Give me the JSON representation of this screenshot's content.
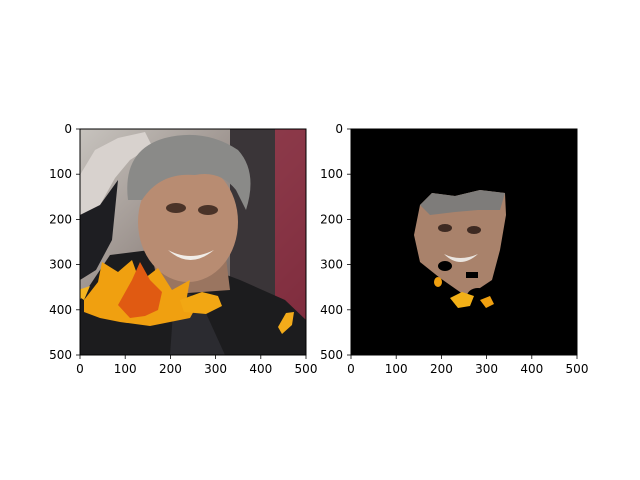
{
  "chart_data": [
    {
      "type": "image",
      "title": "",
      "xlabel": "",
      "ylabel": "",
      "xlim": [
        0,
        500
      ],
      "ylim": [
        500,
        0
      ],
      "xticks": [
        "0",
        "100",
        "200",
        "300",
        "400",
        "500"
      ],
      "yticks": [
        "0",
        "100",
        "200",
        "300",
        "400",
        "500"
      ],
      "content": "photo of a grey-haired man in a dark suit with autumn-leaf overlays"
    },
    {
      "type": "image",
      "title": "",
      "xlabel": "",
      "ylabel": "",
      "xlim": [
        0,
        500
      ],
      "ylim": [
        500,
        0
      ],
      "xticks": [
        "0",
        "100",
        "200",
        "300",
        "400",
        "500"
      ],
      "yticks": [
        "0",
        "100",
        "200",
        "300",
        "400",
        "500"
      ],
      "content": "face-segmentation mask on black background"
    }
  ],
  "colors": {
    "background": "#ffffff",
    "axis": "#000000",
    "mask_bg": "#000000",
    "leaf_orange": "#f0a010",
    "leaf_red": "#e05a12",
    "skin": "#b88c72",
    "hair": "#8a8a88",
    "suit": "#1c1c1e"
  }
}
